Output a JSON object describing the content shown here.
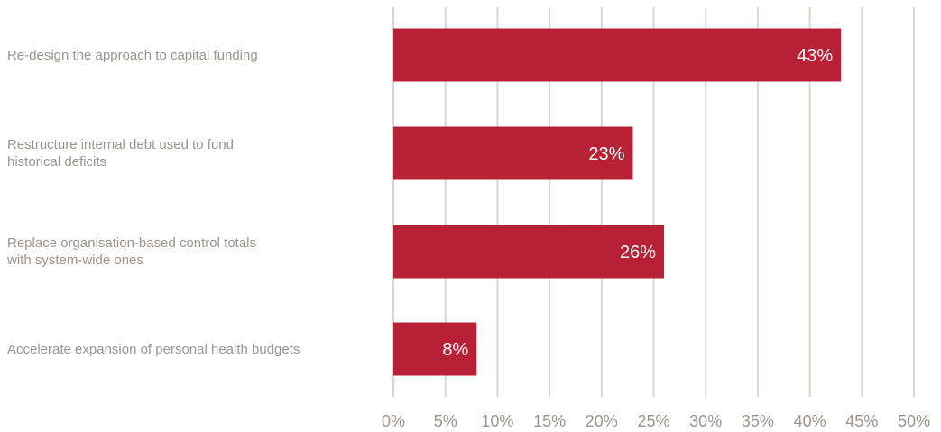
{
  "chart_data": {
    "type": "bar",
    "orientation": "horizontal",
    "categories": [
      "Re-design the approach to capital funding",
      "Restructure internal debt used to fund historical deficits",
      "Replace organisation-based control totals with system-wide ones",
      "Accelerate expansion of personal health budgets"
    ],
    "category_lines": [
      [
        "Re-design the approach to capital funding"
      ],
      [
        "Restructure internal debt used to fund",
        "historical deficits"
      ],
      [
        "Replace organisation-based control totals",
        "with system-wide ones"
      ],
      [
        "Accelerate expansion of personal health budgets"
      ]
    ],
    "values": [
      43,
      23,
      26,
      8
    ],
    "data_labels": [
      "43%",
      "23%",
      "26%",
      "8%"
    ],
    "xlim": [
      0,
      50
    ],
    "x_ticks": [
      0,
      5,
      10,
      15,
      20,
      25,
      30,
      35,
      40,
      45,
      50
    ],
    "x_tick_labels": [
      "0%",
      "5%",
      "10%",
      "15%",
      "20%",
      "25%",
      "30%",
      "35%",
      "40%",
      "45%",
      "50%"
    ],
    "grid": true,
    "legend": "none",
    "bar_color": "#b82135",
    "grid_color": "#ddd5cf",
    "text_color": "#9e948c"
  }
}
